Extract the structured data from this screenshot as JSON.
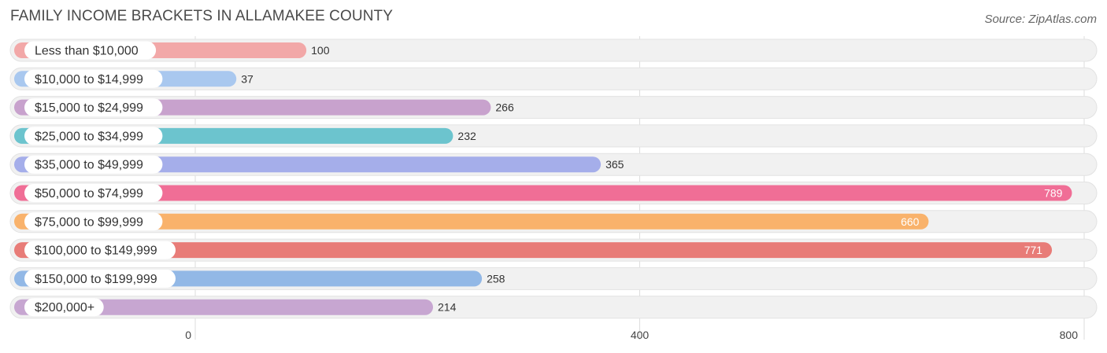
{
  "header": {
    "title": "FAMILY INCOME BRACKETS IN ALLAMAKEE COUNTY",
    "source": "Source: ZipAtlas.com"
  },
  "chart_data": {
    "type": "bar",
    "orientation": "horizontal",
    "title": "FAMILY INCOME BRACKETS IN ALLAMAKEE COUNTY",
    "xlabel": "",
    "ylabel": "",
    "xlim": [
      0,
      800
    ],
    "xticks": [
      0,
      400,
      800
    ],
    "grid": true,
    "categories": [
      "Less than $10,000",
      "$10,000 to $14,999",
      "$15,000 to $24,999",
      "$25,000 to $34,999",
      "$35,000 to $49,999",
      "$50,000 to $74,999",
      "$75,000 to $99,999",
      "$100,000 to $149,999",
      "$150,000 to $199,999",
      "$200,000+"
    ],
    "values": [
      100,
      37,
      266,
      232,
      365,
      789,
      660,
      771,
      258,
      214
    ],
    "colors": [
      "#f2a8a8",
      "#a9c8ef",
      "#c8a2cd",
      "#6cc4ce",
      "#a5aeea",
      "#f06e96",
      "#f9b26b",
      "#e87c78",
      "#92b8e6",
      "#c7a6d1"
    ]
  }
}
